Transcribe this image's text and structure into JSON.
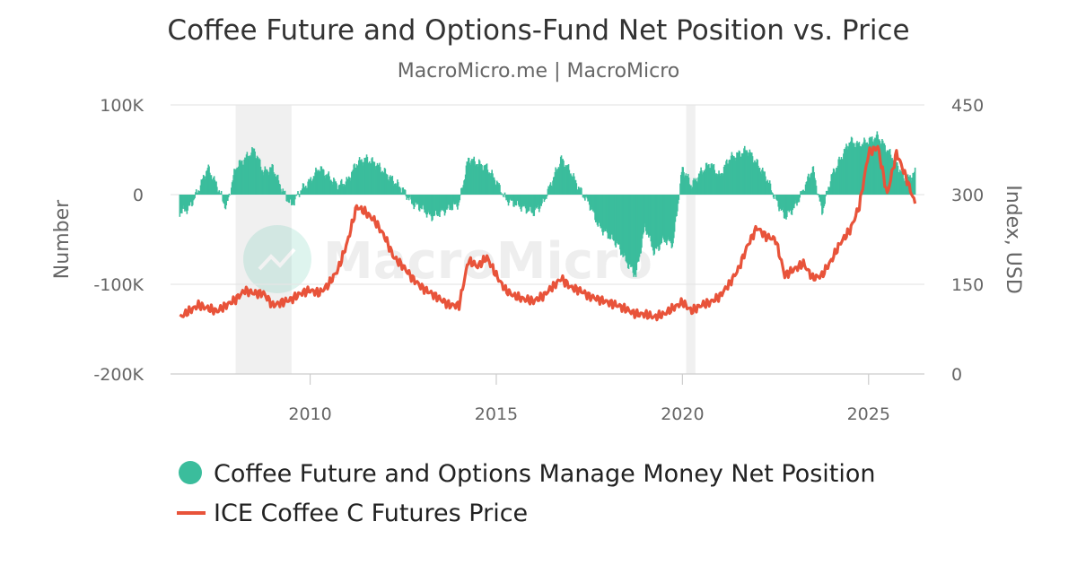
{
  "chart_data": {
    "type": "bar+line",
    "title": "Coffee Future and Options-Fund Net Position vs. Price",
    "subtitle": "MacroMicro.me | MacroMicro",
    "watermark": "MacroMicro",
    "y_left": {
      "label": "Number",
      "range": [
        -200000,
        100000
      ],
      "ticks": [
        "100K",
        "0",
        "-100K",
        "-200K"
      ],
      "tick_values": [
        100000,
        0,
        -100000,
        -200000
      ]
    },
    "y_right": {
      "label": "Index, USD",
      "range": [
        0,
        450
      ],
      "ticks": [
        "450",
        "300",
        "150",
        "0"
      ],
      "tick_values": [
        450,
        300,
        150,
        0
      ]
    },
    "x_axis": {
      "range": [
        2006.25,
        2026.5
      ],
      "ticks": [
        "2010",
        "2015",
        "2020",
        "2025"
      ],
      "tick_values": [
        2010,
        2015,
        2020,
        2025
      ]
    },
    "shaded_periods": [
      [
        2008.0,
        2009.5
      ],
      [
        2020.1,
        2020.35
      ]
    ],
    "grid": true,
    "legend_position": "bottom",
    "series": [
      {
        "name": "Coffee Future and Options Manage Money Net Position",
        "type": "bar",
        "color": "#3bbd9c",
        "points": [
          [
            2006.5,
            -20000
          ],
          [
            2006.75,
            -15000
          ],
          [
            2007.0,
            5000
          ],
          [
            2007.25,
            30000
          ],
          [
            2007.5,
            10000
          ],
          [
            2007.75,
            -15000
          ],
          [
            2008.0,
            30000
          ],
          [
            2008.25,
            40000
          ],
          [
            2008.5,
            50000
          ],
          [
            2008.75,
            25000
          ],
          [
            2009.0,
            30000
          ],
          [
            2009.25,
            5000
          ],
          [
            2009.5,
            -12000
          ],
          [
            2009.75,
            5000
          ],
          [
            2010.0,
            15000
          ],
          [
            2010.25,
            30000
          ],
          [
            2010.5,
            20000
          ],
          [
            2010.75,
            10000
          ],
          [
            2011.0,
            15000
          ],
          [
            2011.25,
            35000
          ],
          [
            2011.5,
            40000
          ],
          [
            2011.75,
            35000
          ],
          [
            2012.0,
            25000
          ],
          [
            2012.25,
            15000
          ],
          [
            2012.5,
            5000
          ],
          [
            2012.75,
            -10000
          ],
          [
            2013.0,
            -15000
          ],
          [
            2013.25,
            -25000
          ],
          [
            2013.5,
            -20000
          ],
          [
            2013.75,
            -15000
          ],
          [
            2014.0,
            -10000
          ],
          [
            2014.25,
            40000
          ],
          [
            2014.5,
            35000
          ],
          [
            2014.75,
            30000
          ],
          [
            2015.0,
            15000
          ],
          [
            2015.25,
            -5000
          ],
          [
            2015.5,
            -10000
          ],
          [
            2015.75,
            -15000
          ],
          [
            2016.0,
            -20000
          ],
          [
            2016.25,
            -10000
          ],
          [
            2016.5,
            15000
          ],
          [
            2016.75,
            40000
          ],
          [
            2017.0,
            25000
          ],
          [
            2017.25,
            5000
          ],
          [
            2017.5,
            -10000
          ],
          [
            2017.75,
            -35000
          ],
          [
            2018.0,
            -45000
          ],
          [
            2018.25,
            -55000
          ],
          [
            2018.5,
            -75000
          ],
          [
            2018.75,
            -90000
          ],
          [
            2019.0,
            -35000
          ],
          [
            2019.25,
            -65000
          ],
          [
            2019.5,
            -50000
          ],
          [
            2019.75,
            -55000
          ],
          [
            2020.0,
            30000
          ],
          [
            2020.25,
            10000
          ],
          [
            2020.5,
            25000
          ],
          [
            2020.75,
            35000
          ],
          [
            2021.0,
            20000
          ],
          [
            2021.25,
            40000
          ],
          [
            2021.5,
            45000
          ],
          [
            2021.75,
            50000
          ],
          [
            2022.0,
            35000
          ],
          [
            2022.25,
            20000
          ],
          [
            2022.5,
            -5000
          ],
          [
            2022.75,
            -25000
          ],
          [
            2023.0,
            -15000
          ],
          [
            2023.25,
            5000
          ],
          [
            2023.5,
            30000
          ],
          [
            2023.75,
            -20000
          ],
          [
            2024.0,
            20000
          ],
          [
            2024.25,
            40000
          ],
          [
            2024.5,
            60000
          ],
          [
            2024.75,
            55000
          ],
          [
            2025.0,
            60000
          ],
          [
            2025.25,
            65000
          ],
          [
            2025.5,
            50000
          ],
          [
            2025.75,
            35000
          ],
          [
            2026.0,
            15000
          ],
          [
            2026.25,
            25000
          ]
        ]
      },
      {
        "name": "ICE Coffee C Futures Price",
        "type": "line",
        "color": "#e8533a",
        "points": [
          [
            2006.5,
            95
          ],
          [
            2006.75,
            105
          ],
          [
            2007.0,
            115
          ],
          [
            2007.25,
            110
          ],
          [
            2007.5,
            105
          ],
          [
            2007.75,
            115
          ],
          [
            2008.0,
            125
          ],
          [
            2008.25,
            140
          ],
          [
            2008.5,
            135
          ],
          [
            2008.75,
            135
          ],
          [
            2009.0,
            115
          ],
          [
            2009.25,
            120
          ],
          [
            2009.5,
            125
          ],
          [
            2009.75,
            135
          ],
          [
            2010.0,
            140
          ],
          [
            2010.25,
            135
          ],
          [
            2010.5,
            150
          ],
          [
            2010.75,
            175
          ],
          [
            2011.0,
            220
          ],
          [
            2011.25,
            280
          ],
          [
            2011.5,
            270
          ],
          [
            2011.75,
            255
          ],
          [
            2012.0,
            230
          ],
          [
            2012.25,
            195
          ],
          [
            2012.5,
            180
          ],
          [
            2012.75,
            160
          ],
          [
            2013.0,
            145
          ],
          [
            2013.25,
            135
          ],
          [
            2013.5,
            125
          ],
          [
            2013.75,
            115
          ],
          [
            2014.0,
            115
          ],
          [
            2014.25,
            190
          ],
          [
            2014.5,
            180
          ],
          [
            2014.75,
            195
          ],
          [
            2015.0,
            165
          ],
          [
            2015.25,
            140
          ],
          [
            2015.5,
            130
          ],
          [
            2015.75,
            125
          ],
          [
            2016.0,
            122
          ],
          [
            2016.25,
            130
          ],
          [
            2016.5,
            145
          ],
          [
            2016.75,
            160
          ],
          [
            2017.0,
            145
          ],
          [
            2017.25,
            140
          ],
          [
            2017.5,
            130
          ],
          [
            2017.75,
            125
          ],
          [
            2018.0,
            120
          ],
          [
            2018.25,
            115
          ],
          [
            2018.5,
            108
          ],
          [
            2018.75,
            100
          ],
          [
            2019.0,
            100
          ],
          [
            2019.25,
            95
          ],
          [
            2019.5,
            100
          ],
          [
            2019.75,
            110
          ],
          [
            2020.0,
            120
          ],
          [
            2020.25,
            105
          ],
          [
            2020.5,
            115
          ],
          [
            2020.75,
            120
          ],
          [
            2021.0,
            130
          ],
          [
            2021.25,
            150
          ],
          [
            2021.5,
            175
          ],
          [
            2021.75,
            215
          ],
          [
            2022.0,
            245
          ],
          [
            2022.25,
            230
          ],
          [
            2022.5,
            225
          ],
          [
            2022.75,
            165
          ],
          [
            2023.0,
            175
          ],
          [
            2023.25,
            185
          ],
          [
            2023.5,
            160
          ],
          [
            2023.75,
            165
          ],
          [
            2024.0,
            190
          ],
          [
            2024.25,
            220
          ],
          [
            2024.5,
            240
          ],
          [
            2024.75,
            280
          ],
          [
            2025.0,
            370
          ],
          [
            2025.25,
            380
          ],
          [
            2025.5,
            300
          ],
          [
            2025.75,
            370
          ],
          [
            2026.0,
            330
          ],
          [
            2026.25,
            285
          ]
        ]
      }
    ]
  }
}
